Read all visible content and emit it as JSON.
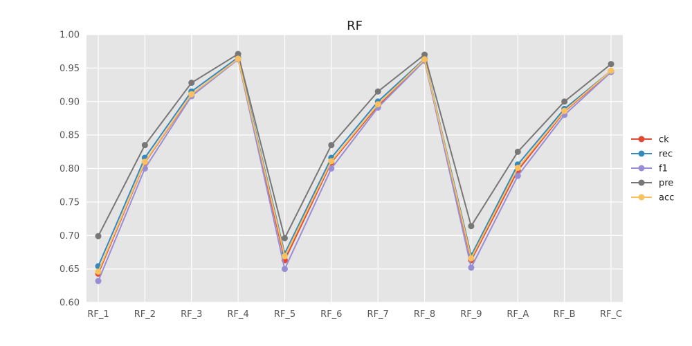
{
  "chart_data": {
    "type": "line",
    "title": "RF",
    "xlabel": "",
    "ylabel": "",
    "categories": [
      "RF_1",
      "RF_2",
      "RF_3",
      "RF_4",
      "RF_5",
      "RF_6",
      "RF_7",
      "RF_8",
      "RF_9",
      "RF_A",
      "RF_B",
      "RF_C"
    ],
    "ylim": [
      0.6,
      1.0
    ],
    "yticks": [
      "0.60",
      "0.65",
      "0.70",
      "0.75",
      "0.80",
      "0.85",
      "0.90",
      "0.95",
      "1.00"
    ],
    "grid": true,
    "legend_position": "right",
    "series": [
      {
        "name": "ck",
        "color": "#E24A33",
        "values": [
          0.643,
          0.809,
          0.91,
          0.964,
          0.663,
          0.809,
          0.894,
          0.962,
          0.663,
          0.797,
          0.885,
          0.945
        ]
      },
      {
        "name": "rec",
        "color": "#348ABD",
        "values": [
          0.654,
          0.816,
          0.915,
          0.966,
          0.673,
          0.816,
          0.9,
          0.964,
          0.67,
          0.806,
          0.889,
          0.946
        ]
      },
      {
        "name": "f1",
        "color": "#988ED5",
        "values": [
          0.632,
          0.8,
          0.908,
          0.963,
          0.65,
          0.8,
          0.891,
          0.961,
          0.652,
          0.789,
          0.88,
          0.944
        ]
      },
      {
        "name": "pre",
        "color": "#777777",
        "values": [
          0.699,
          0.835,
          0.928,
          0.971,
          0.696,
          0.835,
          0.915,
          0.97,
          0.714,
          0.825,
          0.9,
          0.956
        ]
      },
      {
        "name": "acc",
        "color": "#FBC15E",
        "values": [
          0.646,
          0.81,
          0.911,
          0.964,
          0.669,
          0.811,
          0.896,
          0.963,
          0.666,
          0.801,
          0.886,
          0.946
        ]
      }
    ]
  }
}
